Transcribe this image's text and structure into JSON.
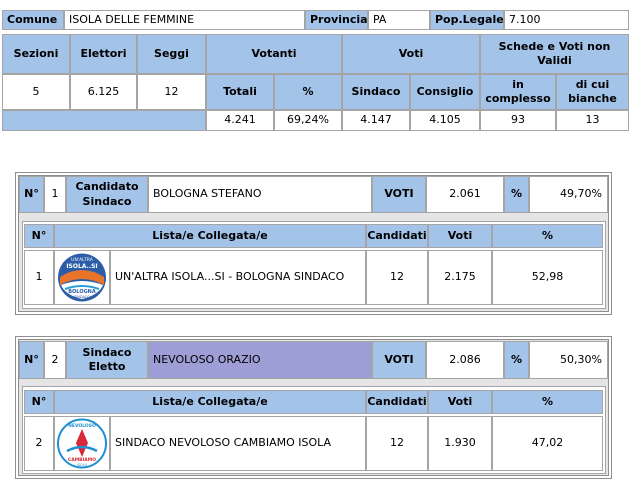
{
  "info": {
    "comune_label": "Comune",
    "comune_value": "ISOLA DELLE FEMMINE",
    "provincia_label": "Provincia",
    "provincia_value": "PA",
    "pop_label": "Pop.Legale",
    "pop_value": "7.100"
  },
  "summary": {
    "headers": {
      "sezioni": "Sezioni",
      "elettori": "Elettori",
      "seggi": "Seggi",
      "votanti": "Votanti",
      "voti": "Voti",
      "schede": "Schede e Voti non Validi"
    },
    "subheaders": {
      "totali": "Totali",
      "pct": "%",
      "sindaco": "Sindaco",
      "consiglio": "Consiglio",
      "complesso": "in complesso",
      "bianche": "di cui bianche"
    },
    "values": {
      "sezioni": "5",
      "elettori": "6.125",
      "seggi": "12",
      "votanti_totali": "4.241",
      "votanti_pct": "69,24%",
      "voti_sindaco": "4.147",
      "voti_consiglio": "4.105",
      "schede_complesso": "93",
      "schede_bianche": "13"
    }
  },
  "candidates": [
    {
      "n_label": "N°",
      "n": "1",
      "role": "Candidato Sindaco",
      "name": "BOLOGNA STEFANO",
      "voti_label": "VOTI",
      "voti": "2.061",
      "pct_label": "%",
      "pct": "49,70%",
      "list_headers": {
        "n": "N°",
        "lista": "Lista/e Collegata/e",
        "candidati": "Candidati",
        "voti": "Voti",
        "pct": "%"
      },
      "list": {
        "n": "1",
        "name": "UN'ALTRA ISOLA...SI - BOLOGNA SINDACO",
        "candidati": "12",
        "voti": "2.175",
        "pct": "52,98"
      },
      "logo": {
        "top": "UN'ALTRA",
        "middle": "ISOLA..SI",
        "bottom": "BOLOGNA",
        "sub": "SINDACO"
      }
    },
    {
      "n_label": "N°",
      "n": "2",
      "role": "Sindaco Eletto",
      "name": "NEVOLOSO ORAZIO",
      "voti_label": "VOTI",
      "voti": "2.086",
      "pct_label": "%",
      "pct": "50,30%",
      "list_headers": {
        "n": "N°",
        "lista": "Lista/e Collegata/e",
        "candidati": "Candidati",
        "voti": "Voti",
        "pct": "%"
      },
      "list": {
        "n": "2",
        "name": "SINDACO NEVOLOSO CAMBIAMO ISOLA",
        "candidati": "12",
        "voti": "1.930",
        "pct": "47,02"
      },
      "logo": {
        "top": "NEVOLOSO",
        "bottom": "CAMBIAMO",
        "sub": "ISOLA"
      }
    }
  ],
  "colors": {
    "header_bg": "#a3c3e9",
    "elected_bg": "#9d9ed6",
    "panel_bg": "#e5e5e5"
  }
}
